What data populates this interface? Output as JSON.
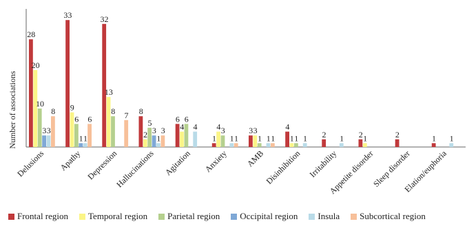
{
  "chart_data": {
    "type": "bar",
    "ylabel": "Number of associations",
    "categories": [
      "Delusions",
      "Apathy",
      "Depression",
      "Hallucinations",
      "Agitation",
      "Anxiety",
      "AMB",
      "Disinhibition",
      "Irritability",
      "Appetite disorder",
      "Sleep disorder",
      "Elation/euphoria"
    ],
    "ylim": [
      0,
      35
    ],
    "grid": false,
    "legend_position": "bottom",
    "series": [
      {
        "name": "Frontal region",
        "color": "#c0393b",
        "values": [
          28,
          33,
          32,
          8,
          6,
          1,
          3,
          4,
          2,
          2,
          2,
          1
        ]
      },
      {
        "name": "Temporal region",
        "color": "#fbf587",
        "values": [
          20,
          9,
          13,
          2,
          4,
          4,
          3,
          1,
          null,
          1,
          null,
          null
        ]
      },
      {
        "name": "Parietal region",
        "color": "#b5d08e",
        "values": [
          10,
          6,
          8,
          5,
          6,
          3,
          1,
          1,
          null,
          null,
          null,
          null
        ]
      },
      {
        "name": "Occipital region",
        "color": "#7fa8d6",
        "values": [
          3,
          1,
          null,
          3,
          null,
          null,
          null,
          null,
          null,
          null,
          null,
          null
        ]
      },
      {
        "name": "Insula",
        "color": "#b9dbe8",
        "values": [
          3,
          1,
          null,
          1,
          4,
          1,
          1,
          1,
          1,
          null,
          null,
          1
        ]
      },
      {
        "name": "Subcortical region",
        "color": "#f7c09a",
        "values": [
          8,
          6,
          7,
          3,
          null,
          1,
          1,
          null,
          null,
          null,
          null,
          null
        ]
      }
    ]
  }
}
